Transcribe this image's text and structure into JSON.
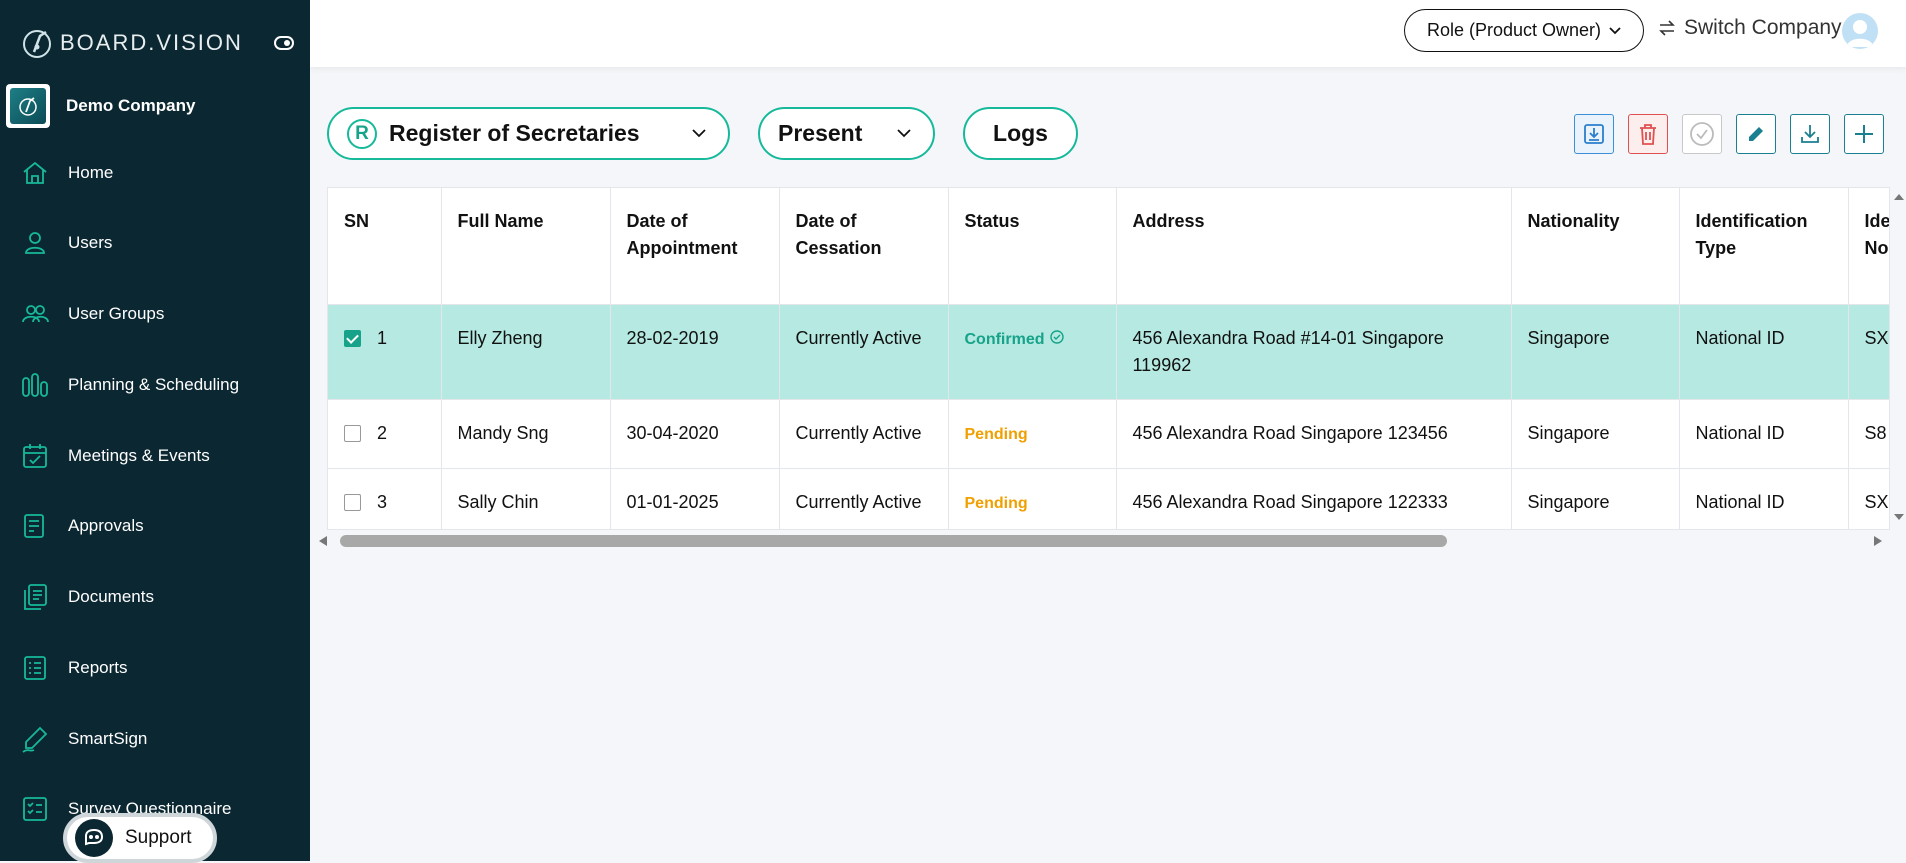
{
  "brand": {
    "name": "BOARD.VISION"
  },
  "company": {
    "name": "Demo Company"
  },
  "nav": [
    {
      "label": "Home",
      "icon": "home-icon"
    },
    {
      "label": "Users",
      "icon": "user-icon"
    },
    {
      "label": "User Groups",
      "icon": "user-group-icon"
    },
    {
      "label": "Planning & Scheduling",
      "icon": "planning-icon"
    },
    {
      "label": "Meetings & Events",
      "icon": "calendar-icon"
    },
    {
      "label": "Approvals",
      "icon": "approval-icon"
    },
    {
      "label": "Documents",
      "icon": "documents-icon"
    },
    {
      "label": "Reports",
      "icon": "reports-icon"
    },
    {
      "label": "SmartSign",
      "icon": "pen-icon"
    },
    {
      "label": "Survey Questionnaire",
      "icon": "survey-icon"
    }
  ],
  "support": {
    "label": "Support"
  },
  "header": {
    "role": "Role (Product Owner)",
    "switch_company": "Switch Company"
  },
  "filters": {
    "register_badge": "R",
    "register": "Register of Secretaries",
    "period": "Present",
    "logs": "Logs"
  },
  "toolbar": [
    "import-icon",
    "delete-icon",
    "approve-icon",
    "edit-icon",
    "download-icon",
    "add-icon"
  ],
  "table": {
    "columns": [
      "SN",
      "Full Name",
      "Date of Appointment",
      "Date of Cessation",
      "Status",
      "Address",
      "Nationality",
      "Identification Type",
      "Identification No."
    ],
    "rows": [
      {
        "sn": "1",
        "name": "Elly Zheng",
        "appointment": "28-02-2019",
        "cessation": "Currently Active",
        "status": "Confirmed",
        "address": "456 Alexandra Road #14-01 Singapore 119962",
        "nationality": "Singapore",
        "id_type": "National ID",
        "id_no": "SX",
        "checked": true
      },
      {
        "sn": "2",
        "name": "Mandy Sng",
        "appointment": "30-04-2020",
        "cessation": "Currently Active",
        "status": "Pending",
        "address": "456 Alexandra Road Singapore 123456",
        "nationality": "Singapore",
        "id_type": "National ID",
        "id_no": "S8",
        "checked": false
      },
      {
        "sn": "3",
        "name": "Sally Chin",
        "appointment": "01-01-2025",
        "cessation": "Currently Active",
        "status": "Pending",
        "address": "456 Alexandra Road Singapore 122333",
        "nationality": "Singapore",
        "id_type": "National ID",
        "id_no": "SX",
        "checked": false
      }
    ]
  },
  "colors": {
    "sidebar": "#0b2731",
    "accent": "#17b99b",
    "selected_row": "#b5e9e2",
    "pending": "#f0a000",
    "delete": "#e05050"
  }
}
